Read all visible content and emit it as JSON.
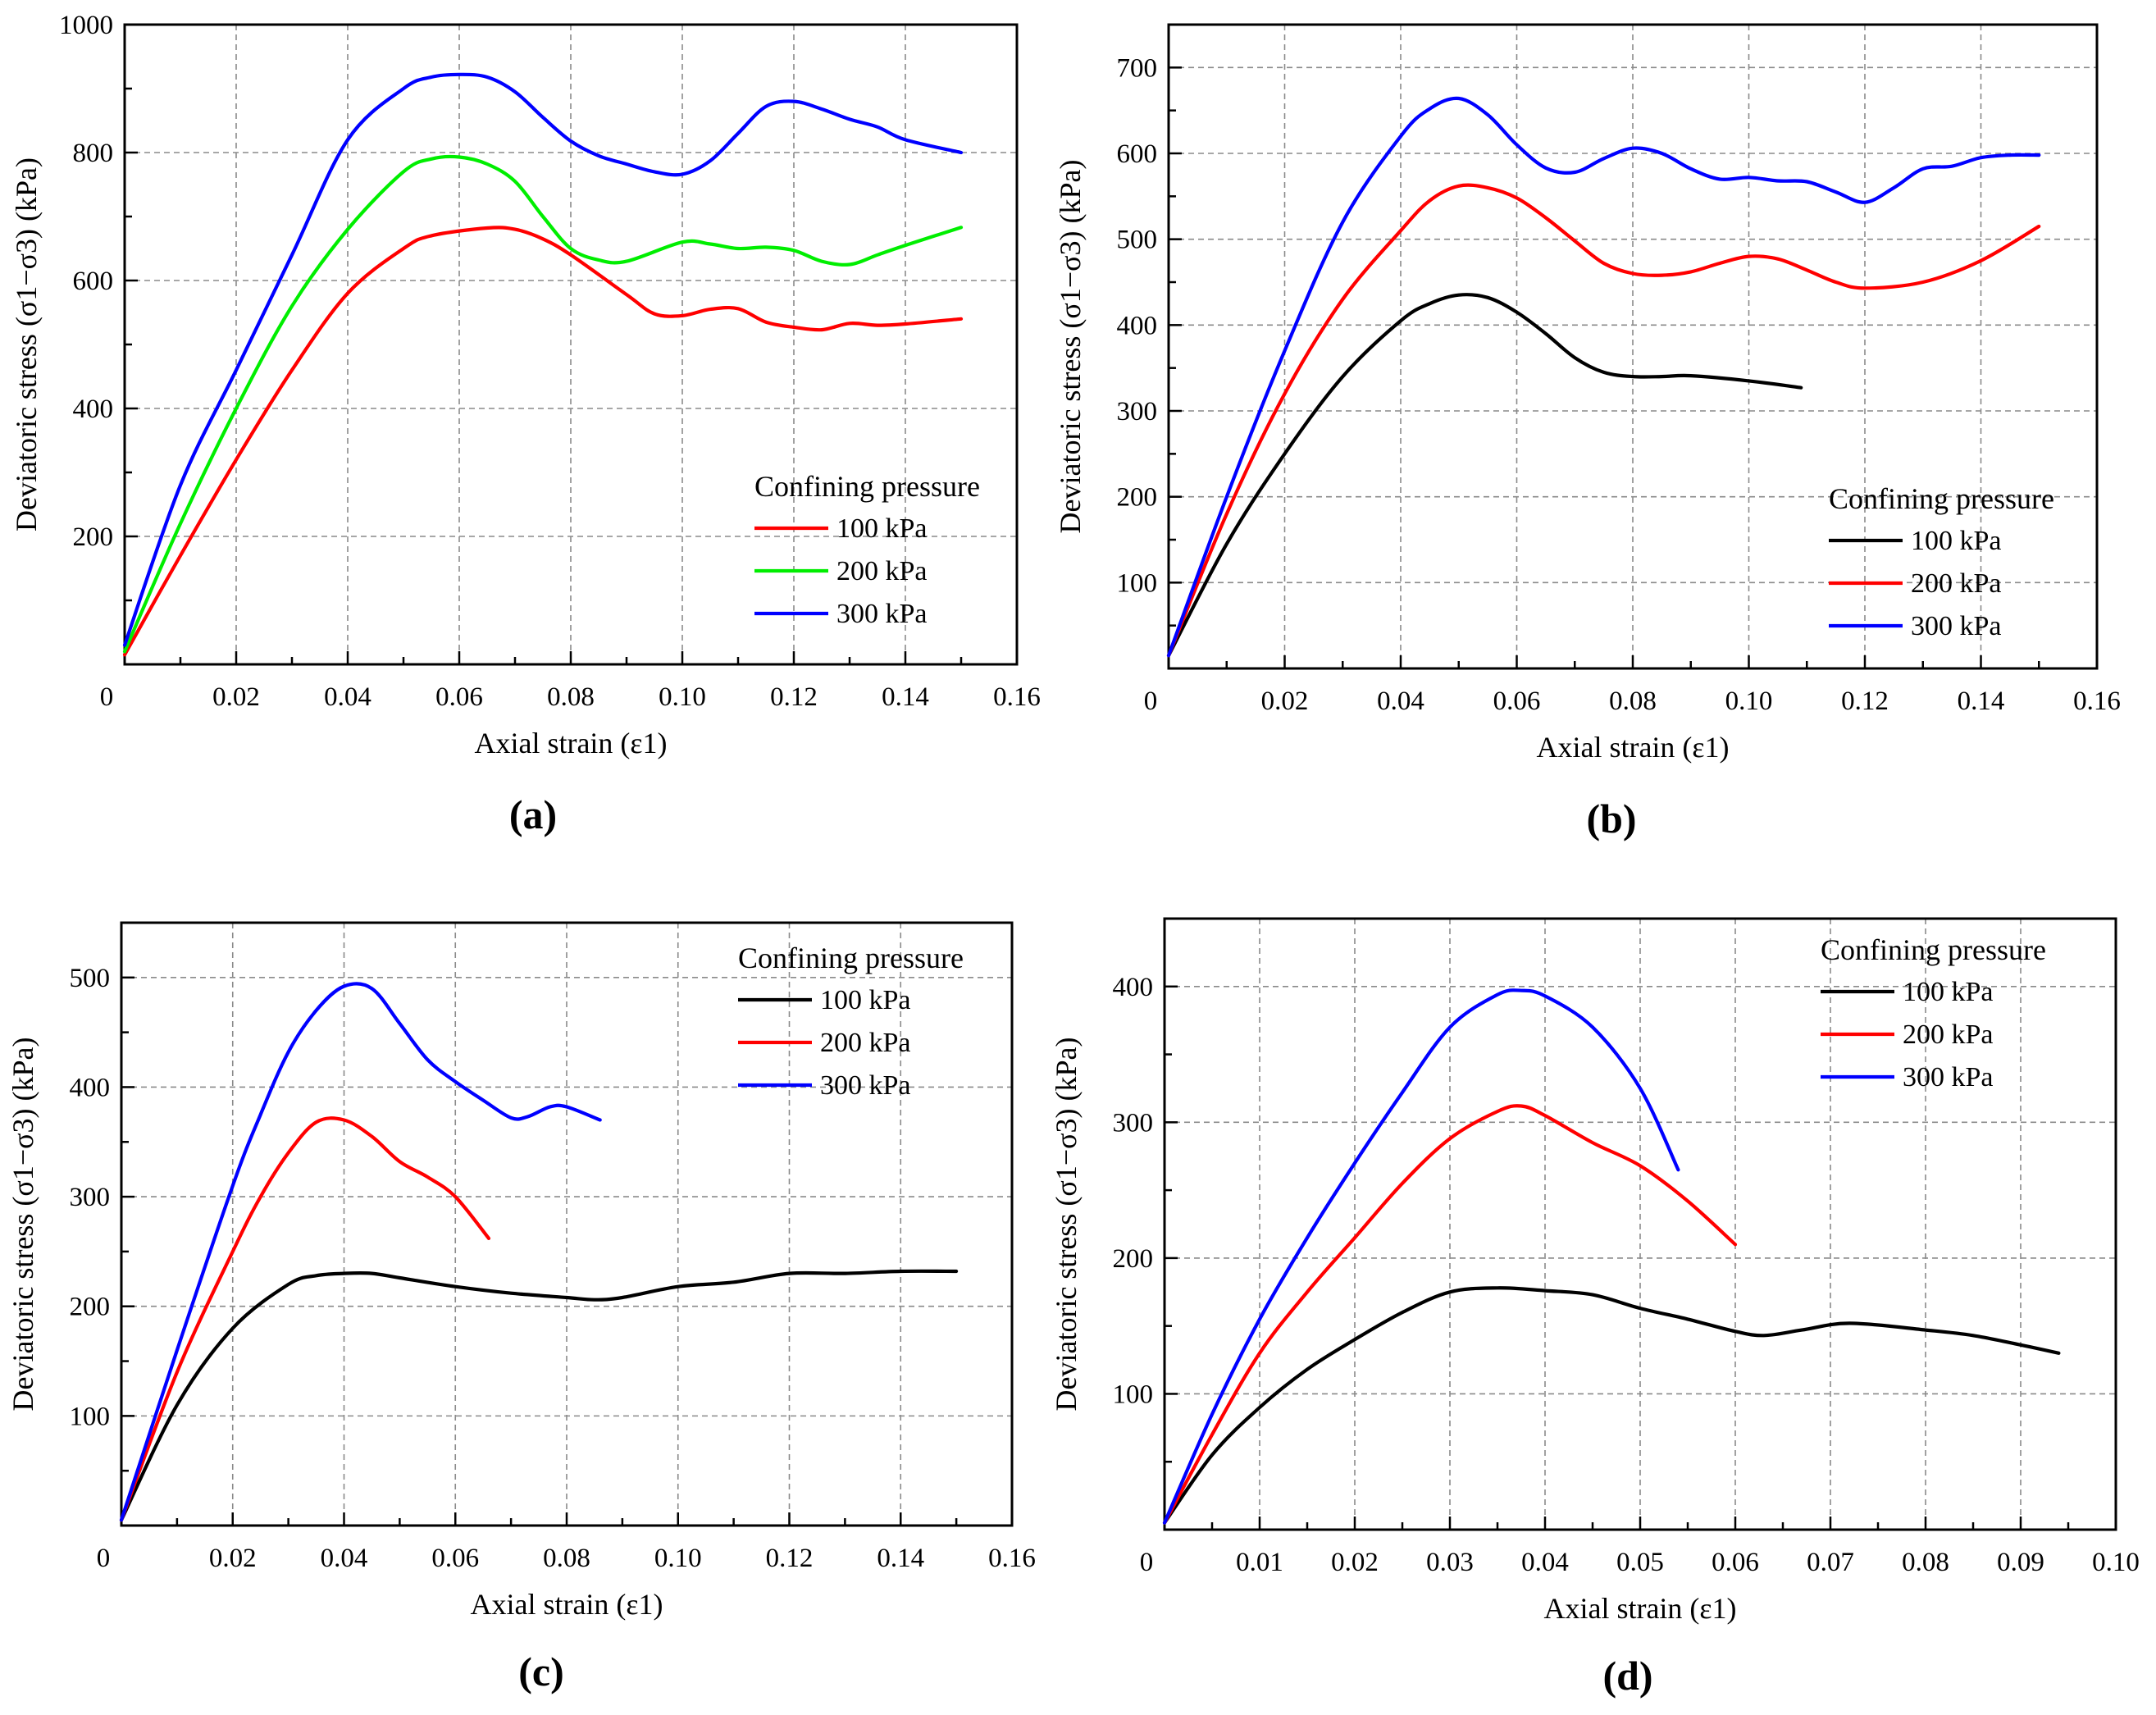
{
  "colors": {
    "black": "#000000",
    "red": "#ff0000",
    "green": "#00ee00",
    "blue": "#0000ff"
  },
  "chart_data": [
    {
      "type": "line",
      "panel_label": "(a)",
      "xlabel": "Axial strain (ε1)",
      "ylabel": "Deviatoric stress (σ1−σ3) (kPa)",
      "xlim": [
        0,
        0.16
      ],
      "ylim": [
        0,
        1000
      ],
      "xticks": [
        0.02,
        0.04,
        0.06,
        0.08,
        0.1,
        0.12,
        0.14,
        0.16
      ],
      "xtick_labels": [
        "0.02",
        "0.04",
        "0.06",
        "0.08",
        "0.10",
        "0.12",
        "0.14",
        "0.16"
      ],
      "yticks": [
        200,
        400,
        600,
        800,
        1000
      ],
      "ytick_labels": [
        "200",
        "400",
        "600",
        "800",
        "1000"
      ],
      "origin_label": "0",
      "legend_title": "Confining pressure",
      "legend_position": "center-right",
      "series": [
        {
          "name": "100 kPa",
          "color": "#ff0000",
          "x": [
            0.0,
            0.01,
            0.02,
            0.03,
            0.04,
            0.05,
            0.055,
            0.065,
            0.07,
            0.075,
            0.08,
            0.09,
            0.095,
            0.1,
            0.105,
            0.11,
            0.115,
            0.12,
            0.125,
            0.13,
            0.135,
            0.14,
            0.15
          ],
          "y": [
            15,
            170,
            320,
            460,
            580,
            650,
            670,
            682,
            680,
            665,
            640,
            578,
            548,
            545,
            555,
            556,
            535,
            527,
            523,
            533,
            530,
            532,
            540
          ]
        },
        {
          "name": "200 kPa",
          "color": "#00ee00",
          "x": [
            0.0,
            0.01,
            0.02,
            0.03,
            0.04,
            0.05,
            0.055,
            0.06,
            0.065,
            0.07,
            0.075,
            0.08,
            0.085,
            0.09,
            0.1,
            0.105,
            0.11,
            0.115,
            0.12,
            0.125,
            0.13,
            0.135,
            0.14,
            0.15
          ],
          "y": [
            20,
            220,
            400,
            560,
            680,
            770,
            790,
            793,
            782,
            755,
            700,
            650,
            632,
            630,
            660,
            657,
            650,
            652,
            647,
            630,
            625,
            640,
            655,
            683
          ]
        },
        {
          "name": "300 kPa",
          "color": "#0000ff",
          "x": [
            0.0,
            0.01,
            0.02,
            0.03,
            0.04,
            0.05,
            0.055,
            0.06,
            0.065,
            0.07,
            0.075,
            0.08,
            0.085,
            0.09,
            0.095,
            0.1,
            0.105,
            0.11,
            0.115,
            0.12,
            0.125,
            0.13,
            0.135,
            0.14,
            0.15
          ],
          "y": [
            30,
            280,
            460,
            640,
            820,
            900,
            918,
            922,
            918,
            895,
            855,
            818,
            795,
            782,
            770,
            766,
            787,
            830,
            872,
            880,
            868,
            852,
            840,
            820,
            800
          ]
        }
      ]
    },
    {
      "type": "line",
      "panel_label": "(b)",
      "xlabel": "Axial strain (ε1)",
      "ylabel": "Deviatoric stress (σ1−σ3) (kPa)",
      "xlim": [
        0,
        0.16
      ],
      "ylim": [
        0,
        750
      ],
      "xticks": [
        0.02,
        0.04,
        0.06,
        0.08,
        0.1,
        0.12,
        0.14,
        0.16
      ],
      "xtick_labels": [
        "0.02",
        "0.04",
        "0.06",
        "0.08",
        "0.10",
        "0.12",
        "0.14",
        "0.16"
      ],
      "yticks": [
        100,
        200,
        300,
        400,
        500,
        600,
        700
      ],
      "ytick_labels": [
        "100",
        "200",
        "300",
        "400",
        "500",
        "600",
        "700"
      ],
      "origin_label": "0",
      "legend_title": "Confining pressure",
      "legend_position": "bottom-right",
      "series": [
        {
          "name": "100 kPa",
          "color": "#000000",
          "x": [
            0.0,
            0.01,
            0.02,
            0.03,
            0.04,
            0.045,
            0.05,
            0.055,
            0.06,
            0.065,
            0.07,
            0.075,
            0.08,
            0.085,
            0.09,
            0.1,
            0.109
          ],
          "y": [
            15,
            145,
            250,
            340,
            405,
            425,
            435,
            432,
            415,
            390,
            362,
            345,
            340,
            340,
            341,
            335,
            327
          ]
        },
        {
          "name": "200 kPa",
          "color": "#ff0000",
          "x": [
            0.0,
            0.01,
            0.02,
            0.03,
            0.04,
            0.045,
            0.05,
            0.055,
            0.06,
            0.065,
            0.07,
            0.075,
            0.08,
            0.085,
            0.09,
            0.095,
            0.1,
            0.105,
            0.11,
            0.115,
            0.12,
            0.13,
            0.14,
            0.15
          ],
          "y": [
            15,
            180,
            320,
            430,
            510,
            545,
            562,
            560,
            548,
            525,
            498,
            472,
            460,
            458,
            462,
            472,
            480,
            477,
            464,
            450,
            443,
            450,
            475,
            515
          ]
        },
        {
          "name": "300 kPa",
          "color": "#0000ff",
          "x": [
            0.0,
            0.01,
            0.02,
            0.03,
            0.04,
            0.045,
            0.05,
            0.055,
            0.06,
            0.065,
            0.07,
            0.075,
            0.08,
            0.085,
            0.09,
            0.095,
            0.1,
            0.105,
            0.11,
            0.115,
            0.12,
            0.125,
            0.13,
            0.135,
            0.14,
            0.145,
            0.15
          ],
          "y": [
            15,
            200,
            370,
            520,
            620,
            652,
            664,
            645,
            610,
            583,
            578,
            594,
            606,
            600,
            582,
            570,
            572,
            568,
            567,
            555,
            543,
            560,
            582,
            585,
            595,
            598,
            598
          ]
        }
      ]
    },
    {
      "type": "line",
      "panel_label": "(c)",
      "xlabel": "Axial strain (ε1)",
      "ylabel": "Deviatoric stress (σ1−σ3) (kPa)",
      "xlim": [
        0,
        0.16
      ],
      "ylim": [
        0,
        550
      ],
      "xticks": [
        0.02,
        0.04,
        0.06,
        0.08,
        0.1,
        0.12,
        0.14,
        0.16
      ],
      "xtick_labels": [
        "0.02",
        "0.04",
        "0.06",
        "0.08",
        "0.10",
        "0.12",
        "0.14",
        "0.16"
      ],
      "yticks": [
        100,
        200,
        300,
        400,
        500
      ],
      "ytick_labels": [
        "100",
        "200",
        "300",
        "400",
        "500"
      ],
      "origin_label": "0",
      "legend_title": "Confining pressure",
      "legend_position": "top-right",
      "series": [
        {
          "name": "100 kPa",
          "color": "#000000",
          "x": [
            0.0,
            0.01,
            0.02,
            0.03,
            0.035,
            0.04,
            0.045,
            0.05,
            0.06,
            0.07,
            0.08,
            0.085,
            0.09,
            0.1,
            0.11,
            0.12,
            0.13,
            0.14,
            0.15
          ],
          "y": [
            5,
            110,
            180,
            220,
            228,
            230,
            230,
            226,
            218,
            212,
            208,
            206,
            208,
            218,
            222,
            230,
            230,
            232,
            232
          ]
        },
        {
          "name": "200 kPa",
          "color": "#ff0000",
          "x": [
            0.0,
            0.01,
            0.02,
            0.025,
            0.03,
            0.035,
            0.04,
            0.045,
            0.05,
            0.055,
            0.06,
            0.066
          ],
          "y": [
            5,
            140,
            250,
            300,
            340,
            368,
            370,
            355,
            332,
            318,
            300,
            262
          ]
        },
        {
          "name": "300 kPa",
          "color": "#0000ff",
          "x": [
            0.0,
            0.01,
            0.02,
            0.025,
            0.03,
            0.035,
            0.04,
            0.045,
            0.05,
            0.055,
            0.06,
            0.065,
            0.07,
            0.073,
            0.077,
            0.08,
            0.086
          ],
          "y": [
            5,
            160,
            310,
            375,
            432,
            470,
            492,
            490,
            458,
            425,
            405,
            388,
            372,
            373,
            382,
            382,
            370
          ]
        }
      ]
    },
    {
      "type": "line",
      "panel_label": "(d)",
      "xlabel": "Axial strain (ε1)",
      "ylabel": "Deviatoric stress (σ1−σ3) (kPa)",
      "xlim": [
        0,
        0.1
      ],
      "ylim": [
        0,
        450
      ],
      "xticks": [
        0.01,
        0.02,
        0.03,
        0.04,
        0.05,
        0.06,
        0.07,
        0.08,
        0.09,
        0.1
      ],
      "xtick_labels": [
        "0.01",
        "0.02",
        "0.03",
        "0.04",
        "0.05",
        "0.06",
        "0.07",
        "0.08",
        "0.09",
        "0.10"
      ],
      "yticks": [
        100,
        200,
        300,
        400
      ],
      "ytick_labels": [
        "100",
        "200",
        "300",
        "400"
      ],
      "origin_label": "0",
      "legend_title": "Confining pressure",
      "legend_position": "top-right",
      "series": [
        {
          "name": "100 kPa",
          "color": "#000000",
          "x": [
            0.0,
            0.005,
            0.01,
            0.015,
            0.02,
            0.025,
            0.03,
            0.035,
            0.04,
            0.045,
            0.05,
            0.055,
            0.06,
            0.063,
            0.067,
            0.072,
            0.08,
            0.085,
            0.09,
            0.094
          ],
          "y": [
            5,
            55,
            90,
            118,
            140,
            160,
            175,
            178,
            176,
            173,
            163,
            155,
            146,
            143,
            147,
            152,
            147,
            143,
            136,
            130
          ]
        },
        {
          "name": "200 kPa",
          "color": "#ff0000",
          "x": [
            0.0,
            0.005,
            0.01,
            0.015,
            0.02,
            0.025,
            0.03,
            0.035,
            0.0375,
            0.04,
            0.045,
            0.05,
            0.055,
            0.06
          ],
          "y": [
            5,
            70,
            130,
            175,
            215,
            255,
            288,
            308,
            312,
            305,
            285,
            268,
            242,
            210
          ]
        },
        {
          "name": "300 kPa",
          "color": "#0000ff",
          "x": [
            0.0,
            0.005,
            0.01,
            0.015,
            0.02,
            0.025,
            0.03,
            0.035,
            0.0375,
            0.04,
            0.045,
            0.05,
            0.054
          ],
          "y": [
            5,
            85,
            155,
            215,
            270,
            322,
            370,
            394,
            397,
            393,
            370,
            325,
            265
          ]
        }
      ]
    }
  ]
}
